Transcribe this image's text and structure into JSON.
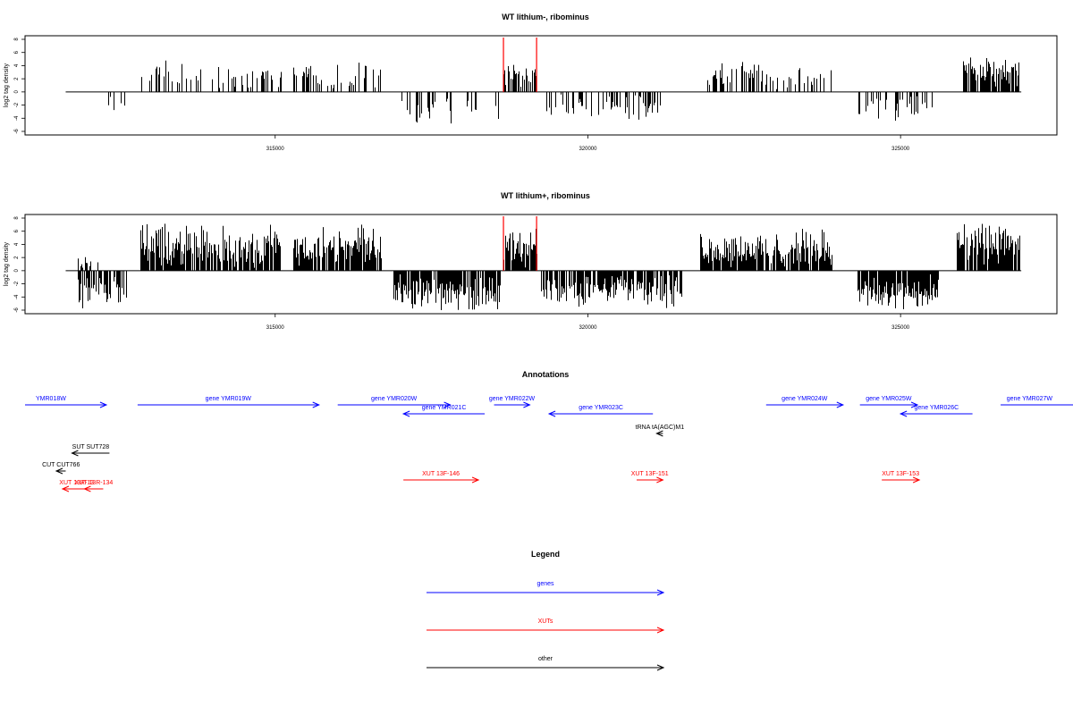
{
  "colors": {
    "genes": "#0000ff",
    "xuts": "#ff0000",
    "other": "#000000",
    "marker": "#ff0000",
    "bars": "#000000"
  },
  "chart_data": [
    {
      "type": "bar",
      "title": "WT lithium-, ribominus",
      "ylabel": "log2 tag density",
      "xlim": [
        311000,
        327500
      ],
      "ylim": [
        -6,
        8
      ],
      "x_ticks": [
        315000,
        320000,
        325000
      ],
      "y_ticks": [
        -6,
        -4,
        -2,
        0,
        2,
        4,
        6,
        8
      ],
      "grid": false,
      "markers_x": [
        318650,
        319180
      ],
      "intervals": [
        {
          "start": 312150,
          "end": 312650,
          "sign": -1,
          "density": 0.25,
          "max": 3.5
        },
        {
          "start": 312850,
          "end": 315100,
          "sign": 1,
          "density": 0.3,
          "max": 4.5
        },
        {
          "start": 315300,
          "end": 316700,
          "sign": 1,
          "density": 0.3,
          "max": 4.5
        },
        {
          "start": 317000,
          "end": 318600,
          "sign": -1,
          "density": 0.35,
          "max": 4.5
        },
        {
          "start": 318650,
          "end": 319180,
          "sign": 1,
          "density": 0.6,
          "max": 4.5
        },
        {
          "start": 319350,
          "end": 321200,
          "sign": -1,
          "density": 0.3,
          "max": 4.0
        },
        {
          "start": 321900,
          "end": 323900,
          "sign": 1,
          "density": 0.35,
          "max": 4.5
        },
        {
          "start": 324300,
          "end": 325600,
          "sign": -1,
          "density": 0.35,
          "max": 4.5
        },
        {
          "start": 326000,
          "end": 326900,
          "sign": 1,
          "density": 0.8,
          "max": 5.5
        }
      ]
    },
    {
      "type": "bar",
      "title": "WT lithium+, ribominus",
      "ylabel": "log2 tag density",
      "xlim": [
        311000,
        327500
      ],
      "ylim": [
        -6,
        8
      ],
      "x_ticks": [
        315000,
        320000,
        325000
      ],
      "y_ticks": [
        -6,
        -4,
        -2,
        0,
        2,
        4,
        6,
        8
      ],
      "grid": false,
      "markers_x": [
        318650,
        319180
      ],
      "intervals": [
        {
          "start": 311850,
          "end": 312650,
          "sign": -1,
          "density": 0.6,
          "max": 5.5
        },
        {
          "start": 311850,
          "end": 312200,
          "sign": 1,
          "density": 0.4,
          "max": 2.5
        },
        {
          "start": 312850,
          "end": 315100,
          "sign": 1,
          "density": 0.9,
          "max": 7.0
        },
        {
          "start": 315300,
          "end": 316700,
          "sign": 1,
          "density": 0.9,
          "max": 6.5
        },
        {
          "start": 316900,
          "end": 318600,
          "sign": -1,
          "density": 0.9,
          "max": 6.0
        },
        {
          "start": 318650,
          "end": 319180,
          "sign": 1,
          "density": 0.9,
          "max": 6.5
        },
        {
          "start": 319250,
          "end": 321500,
          "sign": -1,
          "density": 0.8,
          "max": 5.5
        },
        {
          "start": 321800,
          "end": 323900,
          "sign": 1,
          "density": 0.9,
          "max": 6.0
        },
        {
          "start": 324300,
          "end": 325600,
          "sign": -1,
          "density": 0.9,
          "max": 6.0
        },
        {
          "start": 325900,
          "end": 326900,
          "sign": 1,
          "density": 0.9,
          "max": 7.0
        }
      ]
    }
  ],
  "annotations": {
    "title": "Annotations",
    "features": [
      {
        "label": "YMR018W",
        "start": 311000,
        "end": 312300,
        "strand": "+",
        "type": "genes",
        "row": 0
      },
      {
        "label": "gene YMR019W",
        "start": 312800,
        "end": 315700,
        "strand": "+",
        "type": "genes",
        "row": 0
      },
      {
        "label": "gene YMR020W",
        "start": 316000,
        "end": 317800,
        "strand": "+",
        "type": "genes",
        "row": 0
      },
      {
        "label": "gene YMR021C",
        "start": 318350,
        "end": 317050,
        "strand": "-",
        "type": "genes",
        "row": 1
      },
      {
        "label": "gene YMR022W",
        "start": 318500,
        "end": 319070,
        "strand": "+",
        "type": "genes",
        "row": 0
      },
      {
        "label": "gene YMR023C",
        "start": 321040,
        "end": 319380,
        "strand": "-",
        "type": "genes",
        "row": 1
      },
      {
        "label": "gene YMR024W",
        "start": 322850,
        "end": 324080,
        "strand": "+",
        "type": "genes",
        "row": 0
      },
      {
        "label": "gene YMR025W",
        "start": 324350,
        "end": 325270,
        "strand": "+",
        "type": "genes",
        "row": 0
      },
      {
        "label": "gene YMR026C",
        "start": 326150,
        "end": 325000,
        "strand": "-",
        "type": "genes",
        "row": 1
      },
      {
        "label": "gene YMR027W",
        "start": 326600,
        "end": 328000,
        "strand": "+",
        "type": "genes",
        "row": 0
      },
      {
        "label": "tRNA tA(AGC)M1",
        "start": 321200,
        "end": 321100,
        "strand": "-",
        "type": "other",
        "row": 2
      },
      {
        "label": "SUT SUT728",
        "start": 312350,
        "end": 311750,
        "strand": "-",
        "type": "other",
        "row": 3
      },
      {
        "label": "CUT CUT766",
        "start": 311650,
        "end": 311500,
        "strand": "-",
        "type": "other",
        "row": 4
      },
      {
        "label": "XUT 13R-13",
        "start": 312050,
        "end": 311600,
        "strand": "-",
        "type": "xuts",
        "row": 5
      },
      {
        "label": "XUT 13R-134",
        "start": 312250,
        "end": 311950,
        "strand": "-",
        "type": "xuts",
        "row": 5
      },
      {
        "label": "XUT 13F-146",
        "start": 317050,
        "end": 318250,
        "strand": "+",
        "type": "xuts",
        "row": 6
      },
      {
        "label": "XUT 13F-151",
        "start": 320780,
        "end": 321200,
        "strand": "+",
        "type": "xuts",
        "row": 6
      },
      {
        "label": "XUT 13F-153",
        "start": 324700,
        "end": 325300,
        "strand": "+",
        "type": "xuts",
        "row": 6
      }
    ]
  },
  "legend": {
    "title": "Legend",
    "entries": [
      {
        "label": "genes",
        "type": "genes"
      },
      {
        "label": "XUTs",
        "type": "xuts"
      },
      {
        "label": "other",
        "type": "other"
      }
    ]
  }
}
